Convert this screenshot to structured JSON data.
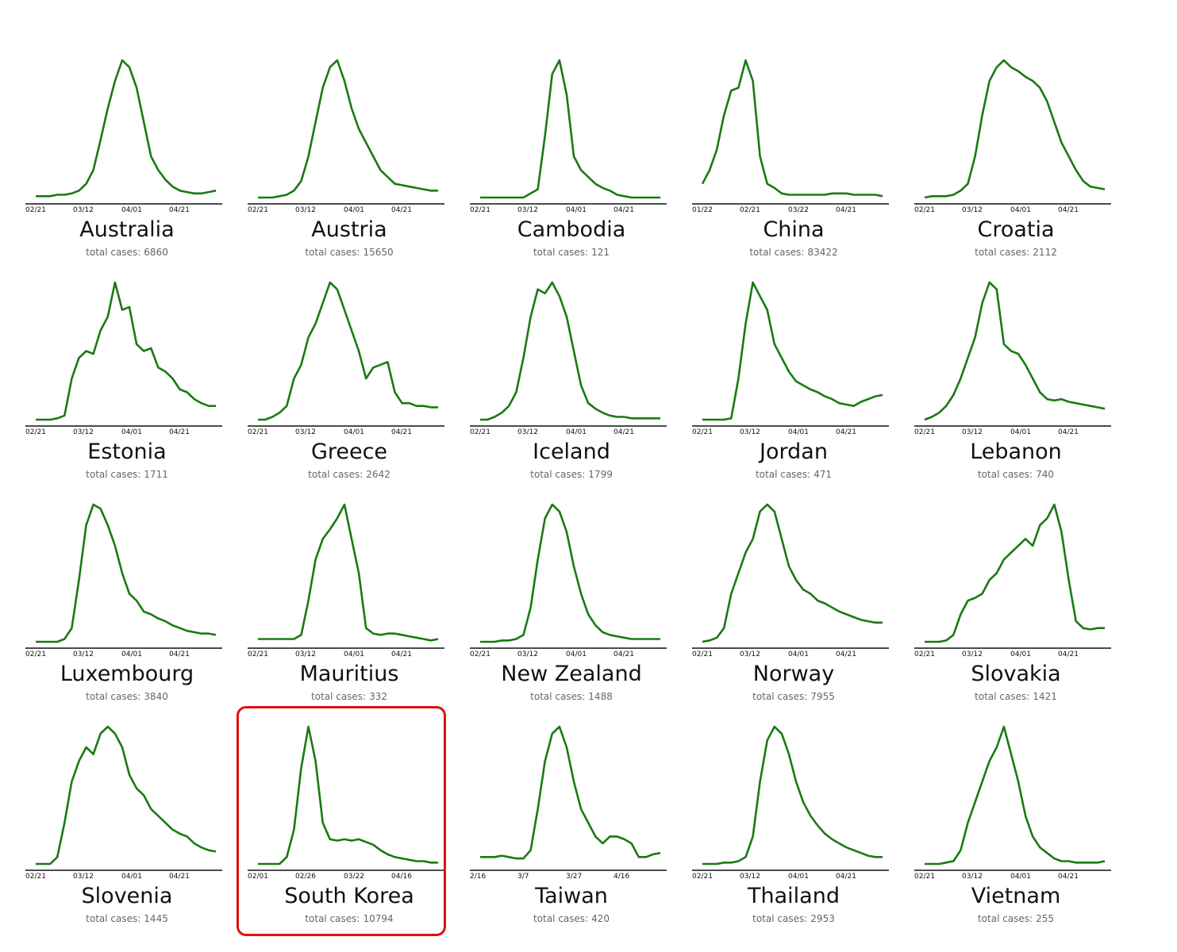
{
  "total_label": "total cases:",
  "highlight_color": "#e01010",
  "line_color": "#1a7a12",
  "highlighted_country": "South Korea",
  "chart_data": {
    "type": "line",
    "layout": "small-multiples grid 5 x 4",
    "y_axis": "normalized to each country's peak (unlabeled)",
    "panels": [
      {
        "country": "Australia",
        "total_cases": "6860",
        "ticks": [
          "02/21",
          "03/12",
          "04/01",
          "04/21"
        ],
        "values": [
          0.01,
          0.01,
          0.01,
          0.02,
          0.02,
          0.03,
          0.05,
          0.1,
          0.2,
          0.42,
          0.65,
          0.85,
          1.0,
          0.95,
          0.8,
          0.55,
          0.3,
          0.2,
          0.13,
          0.08,
          0.05,
          0.04,
          0.03,
          0.03,
          0.04,
          0.05
        ]
      },
      {
        "country": "Austria",
        "total_cases": "15650",
        "ticks": [
          "02/21",
          "03/12",
          "04/01",
          "04/21"
        ],
        "values": [
          0.0,
          0.0,
          0.0,
          0.01,
          0.02,
          0.05,
          0.12,
          0.3,
          0.55,
          0.8,
          0.95,
          1.0,
          0.85,
          0.65,
          0.5,
          0.4,
          0.3,
          0.2,
          0.15,
          0.1,
          0.09,
          0.08,
          0.07,
          0.06,
          0.05,
          0.05
        ]
      },
      {
        "country": "Cambodia",
        "total_cases": "121",
        "ticks": [
          "02/21",
          "03/12",
          "04/01",
          "04/21"
        ],
        "values": [
          0,
          0,
          0,
          0,
          0,
          0,
          0,
          0.03,
          0.06,
          0.45,
          0.9,
          1.0,
          0.75,
          0.3,
          0.2,
          0.15,
          0.1,
          0.07,
          0.05,
          0.02,
          0.01,
          0,
          0,
          0,
          0,
          0
        ]
      },
      {
        "country": "China",
        "total_cases": "83422",
        "ticks": [
          "01/22",
          "02/21",
          "03/22",
          "04/21"
        ],
        "values": [
          0.1,
          0.2,
          0.35,
          0.6,
          0.78,
          0.8,
          1.0,
          0.85,
          0.3,
          0.1,
          0.07,
          0.03,
          0.02,
          0.02,
          0.02,
          0.02,
          0.02,
          0.02,
          0.03,
          0.03,
          0.03,
          0.02,
          0.02,
          0.02,
          0.02,
          0.01
        ]
      },
      {
        "country": "Croatia",
        "total_cases": "2112",
        "ticks": [
          "02/21",
          "03/12",
          "04/01",
          "04/21"
        ],
        "values": [
          0.0,
          0.01,
          0.01,
          0.01,
          0.02,
          0.05,
          0.1,
          0.3,
          0.6,
          0.85,
          0.95,
          1.0,
          0.95,
          0.92,
          0.88,
          0.85,
          0.8,
          0.7,
          0.55,
          0.4,
          0.3,
          0.2,
          0.12,
          0.08,
          0.07,
          0.06
        ]
      },
      {
        "country": "Estonia",
        "total_cases": "1711",
        "ticks": [
          "02/21",
          "03/12",
          "04/01",
          "04/21"
        ],
        "values": [
          0.0,
          0.0,
          0.0,
          0.01,
          0.03,
          0.3,
          0.45,
          0.5,
          0.48,
          0.65,
          0.75,
          1.0,
          0.8,
          0.82,
          0.55,
          0.5,
          0.52,
          0.38,
          0.35,
          0.3,
          0.22,
          0.2,
          0.15,
          0.12,
          0.1,
          0.1
        ]
      },
      {
        "country": "Greece",
        "total_cases": "2642",
        "ticks": [
          "02/21",
          "03/12",
          "04/01",
          "04/21"
        ],
        "values": [
          0.0,
          0.0,
          0.02,
          0.05,
          0.1,
          0.3,
          0.4,
          0.6,
          0.7,
          0.85,
          1.0,
          0.95,
          0.8,
          0.65,
          0.5,
          0.3,
          0.38,
          0.4,
          0.42,
          0.2,
          0.12,
          0.12,
          0.1,
          0.1,
          0.09,
          0.09
        ]
      },
      {
        "country": "Iceland",
        "total_cases": "1799",
        "ticks": [
          "02/21",
          "03/12",
          "04/01",
          "04/21"
        ],
        "values": [
          0.0,
          0.0,
          0.02,
          0.05,
          0.1,
          0.2,
          0.45,
          0.75,
          0.95,
          0.92,
          1.0,
          0.9,
          0.75,
          0.5,
          0.25,
          0.12,
          0.08,
          0.05,
          0.03,
          0.02,
          0.02,
          0.01,
          0.01,
          0.01,
          0.01,
          0.01
        ]
      },
      {
        "country": "Jordan",
        "total_cases": "471",
        "ticks": [
          "02/21",
          "03/12",
          "04/01",
          "04/21"
        ],
        "values": [
          0.0,
          0.0,
          0.0,
          0.0,
          0.01,
          0.3,
          0.7,
          1.0,
          0.9,
          0.8,
          0.55,
          0.45,
          0.35,
          0.28,
          0.25,
          0.22,
          0.2,
          0.17,
          0.15,
          0.12,
          0.11,
          0.1,
          0.13,
          0.15,
          0.17,
          0.18
        ]
      },
      {
        "country": "Lebanon",
        "total_cases": "740",
        "ticks": [
          "02/21",
          "03/12",
          "04/01",
          "04/21"
        ],
        "values": [
          0.0,
          0.02,
          0.05,
          0.1,
          0.18,
          0.3,
          0.45,
          0.6,
          0.85,
          1.0,
          0.95,
          0.55,
          0.5,
          0.48,
          0.4,
          0.3,
          0.2,
          0.15,
          0.14,
          0.15,
          0.13,
          0.12,
          0.11,
          0.1,
          0.09,
          0.08
        ]
      },
      {
        "country": "Luxembourg",
        "total_cases": "3840",
        "ticks": [
          "02/21",
          "03/12",
          "04/01",
          "04/21"
        ],
        "values": [
          0.0,
          0.0,
          0.0,
          0.0,
          0.02,
          0.1,
          0.45,
          0.85,
          1.0,
          0.97,
          0.85,
          0.7,
          0.5,
          0.35,
          0.3,
          0.22,
          0.2,
          0.17,
          0.15,
          0.12,
          0.1,
          0.08,
          0.07,
          0.06,
          0.06,
          0.05
        ]
      },
      {
        "country": "Mauritius",
        "total_cases": "332",
        "ticks": [
          "02/21",
          "03/12",
          "04/01",
          "04/21"
        ],
        "values": [
          0.02,
          0.02,
          0.02,
          0.02,
          0.02,
          0.02,
          0.05,
          0.3,
          0.6,
          0.75,
          0.82,
          0.9,
          1.0,
          0.75,
          0.5,
          0.1,
          0.06,
          0.05,
          0.06,
          0.06,
          0.05,
          0.04,
          0.03,
          0.02,
          0.01,
          0.02
        ]
      },
      {
        "country": "New Zealand",
        "total_cases": "1488",
        "ticks": [
          "02/21",
          "03/12",
          "04/01",
          "04/21"
        ],
        "values": [
          0.0,
          0.0,
          0.0,
          0.01,
          0.01,
          0.02,
          0.05,
          0.25,
          0.6,
          0.9,
          1.0,
          0.95,
          0.8,
          0.55,
          0.35,
          0.2,
          0.12,
          0.07,
          0.05,
          0.04,
          0.03,
          0.02,
          0.02,
          0.02,
          0.02,
          0.02
        ]
      },
      {
        "country": "Norway",
        "total_cases": "7955",
        "ticks": [
          "02/21",
          "03/12",
          "04/01",
          "04/21"
        ],
        "values": [
          0.0,
          0.01,
          0.03,
          0.1,
          0.35,
          0.5,
          0.65,
          0.75,
          0.95,
          1.0,
          0.95,
          0.75,
          0.55,
          0.45,
          0.38,
          0.35,
          0.3,
          0.28,
          0.25,
          0.22,
          0.2,
          0.18,
          0.16,
          0.15,
          0.14,
          0.14
        ]
      },
      {
        "country": "Slovakia",
        "total_cases": "1421",
        "ticks": [
          "02/21",
          "03/12",
          "04/01",
          "04/21"
        ],
        "values": [
          0.0,
          0.0,
          0.0,
          0.01,
          0.05,
          0.2,
          0.3,
          0.32,
          0.35,
          0.45,
          0.5,
          0.6,
          0.65,
          0.7,
          0.75,
          0.7,
          0.85,
          0.9,
          1.0,
          0.8,
          0.45,
          0.15,
          0.1,
          0.09,
          0.1,
          0.1
        ]
      },
      {
        "country": "Slovenia",
        "total_cases": "1445",
        "ticks": [
          "02/21",
          "03/12",
          "04/01",
          "04/21"
        ],
        "values": [
          0.0,
          0.0,
          0.0,
          0.05,
          0.3,
          0.6,
          0.75,
          0.85,
          0.8,
          0.95,
          1.0,
          0.95,
          0.85,
          0.65,
          0.55,
          0.5,
          0.4,
          0.35,
          0.3,
          0.25,
          0.22,
          0.2,
          0.15,
          0.12,
          0.1,
          0.09
        ]
      },
      {
        "country": "South Korea",
        "total_cases": "10794",
        "ticks": [
          "02/01",
          "02/26",
          "03/22",
          "04/16"
        ],
        "values": [
          0.0,
          0.0,
          0.0,
          0.0,
          0.05,
          0.25,
          0.7,
          1.0,
          0.75,
          0.3,
          0.18,
          0.17,
          0.18,
          0.17,
          0.18,
          0.16,
          0.14,
          0.1,
          0.07,
          0.05,
          0.04,
          0.03,
          0.02,
          0.02,
          0.01,
          0.01
        ]
      },
      {
        "country": "Taiwan",
        "total_cases": "420",
        "ticks": [
          "2/16",
          "3/7",
          "3/27",
          "4/16"
        ],
        "values": [
          0.05,
          0.05,
          0.05,
          0.06,
          0.05,
          0.04,
          0.04,
          0.1,
          0.4,
          0.75,
          0.95,
          1.0,
          0.85,
          0.6,
          0.4,
          0.3,
          0.2,
          0.15,
          0.2,
          0.2,
          0.18,
          0.15,
          0.05,
          0.05,
          0.07,
          0.08
        ]
      },
      {
        "country": "Thailand",
        "total_cases": "2953",
        "ticks": [
          "02/21",
          "03/12",
          "04/01",
          "04/21"
        ],
        "values": [
          0.0,
          0.0,
          0.0,
          0.01,
          0.01,
          0.02,
          0.05,
          0.2,
          0.6,
          0.9,
          1.0,
          0.95,
          0.8,
          0.6,
          0.45,
          0.35,
          0.28,
          0.22,
          0.18,
          0.15,
          0.12,
          0.1,
          0.08,
          0.06,
          0.05,
          0.05
        ]
      },
      {
        "country": "Vietnam",
        "total_cases": "255",
        "ticks": [
          "02/21",
          "03/12",
          "04/01",
          "04/21"
        ],
        "values": [
          0.0,
          0.0,
          0.0,
          0.01,
          0.02,
          0.1,
          0.3,
          0.45,
          0.6,
          0.75,
          0.85,
          1.0,
          0.8,
          0.6,
          0.35,
          0.2,
          0.12,
          0.08,
          0.04,
          0.02,
          0.02,
          0.01,
          0.01,
          0.01,
          0.01,
          0.02
        ]
      }
    ]
  }
}
